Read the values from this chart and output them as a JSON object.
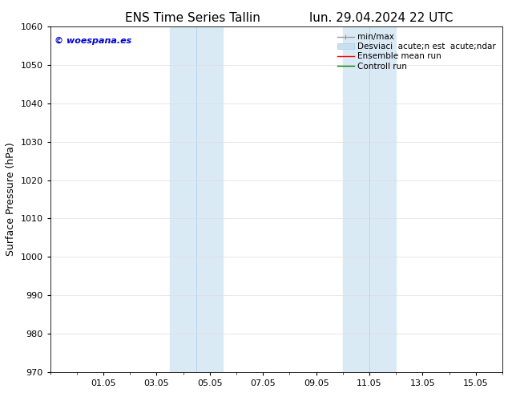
{
  "title_left": "ENS Time Series Tallin",
  "title_right": "lun. 29.04.2024 22 UTC",
  "ylabel": "Surface Pressure (hPa)",
  "ylim": [
    970,
    1060
  ],
  "yticks": [
    970,
    980,
    990,
    1000,
    1010,
    1020,
    1030,
    1040,
    1050,
    1060
  ],
  "xtick_labels": [
    "01.05",
    "03.05",
    "05.05",
    "07.05",
    "09.05",
    "11.05",
    "13.05",
    "15.05"
  ],
  "xtick_positions": [
    2.0,
    4.0,
    6.0,
    8.0,
    10.0,
    12.0,
    14.0,
    16.0
  ],
  "xlim": [
    0.0,
    17.0
  ],
  "shaded_regions": [
    {
      "xmin": 4.5,
      "xmax": 6.5,
      "color": "#daeaf5"
    },
    {
      "xmin": 11.0,
      "xmax": 13.0,
      "color": "#daeaf5"
    }
  ],
  "inner_vlines": [
    {
      "x": 5.5,
      "color": "#b8d5ea"
    },
    {
      "x": 12.0,
      "color": "#b8d5ea"
    }
  ],
  "watermark_text": "© woespana.es",
  "watermark_color": "#0000cc",
  "background_color": "#ffffff",
  "legend_minmax_color": "#999999",
  "legend_std_color": "#c8dff0",
  "legend_ensemble_color": "#ff0000",
  "legend_control_color": "#008000",
  "legend_labels": [
    "min/max",
    "Desviaci  acute;n est  acute;ndar",
    "Ensemble mean run",
    "Controll run"
  ],
  "grid_color": "#dddddd",
  "title_fontsize": 11,
  "axis_label_fontsize": 9,
  "tick_fontsize": 8,
  "legend_fontsize": 7.5
}
